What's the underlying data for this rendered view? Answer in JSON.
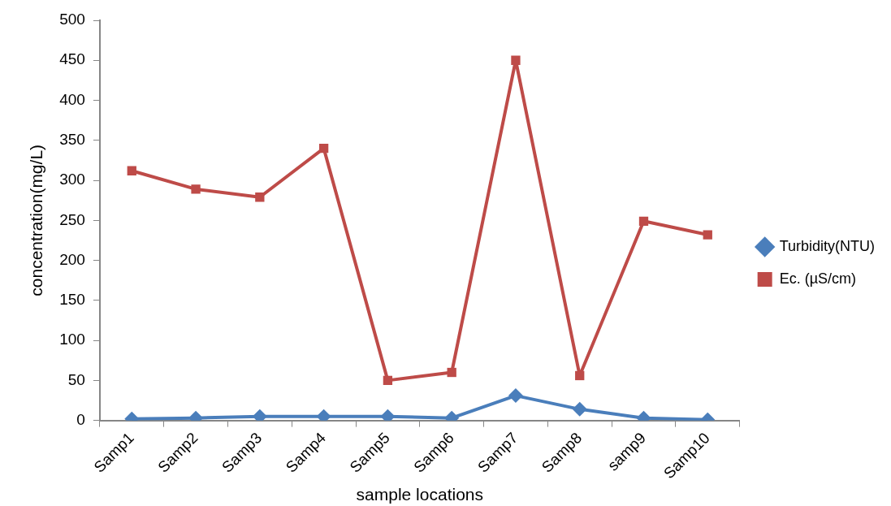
{
  "chart_data": {
    "type": "line",
    "xlabel": "sample locations",
    "ylabel": "concentration(mg/L)",
    "categories": [
      "Samp1",
      "Samp2",
      "Samp3",
      "Samp4",
      "Samp5",
      "Samp6",
      "Samp7",
      "Samp8",
      "samp9",
      "Samp10"
    ],
    "series": [
      {
        "name": "Turbidity(NTU)",
        "color": "#4a7ebb",
        "marker": "diamond",
        "values": [
          2,
          3,
          5,
          5,
          5,
          3,
          31,
          14,
          3,
          1
        ]
      },
      {
        "name": "Ec. (µS/cm)",
        "color": "#be4b48",
        "marker": "square",
        "values": [
          312,
          289,
          279,
          340,
          50,
          60,
          450,
          56,
          249,
          232
        ]
      }
    ],
    "ylim": [
      0,
      500
    ],
    "yticks": [
      0,
      50,
      100,
      150,
      200,
      250,
      300,
      350,
      400,
      450,
      500
    ],
    "grid": false,
    "legend": "right",
    "line_style": "solid"
  }
}
